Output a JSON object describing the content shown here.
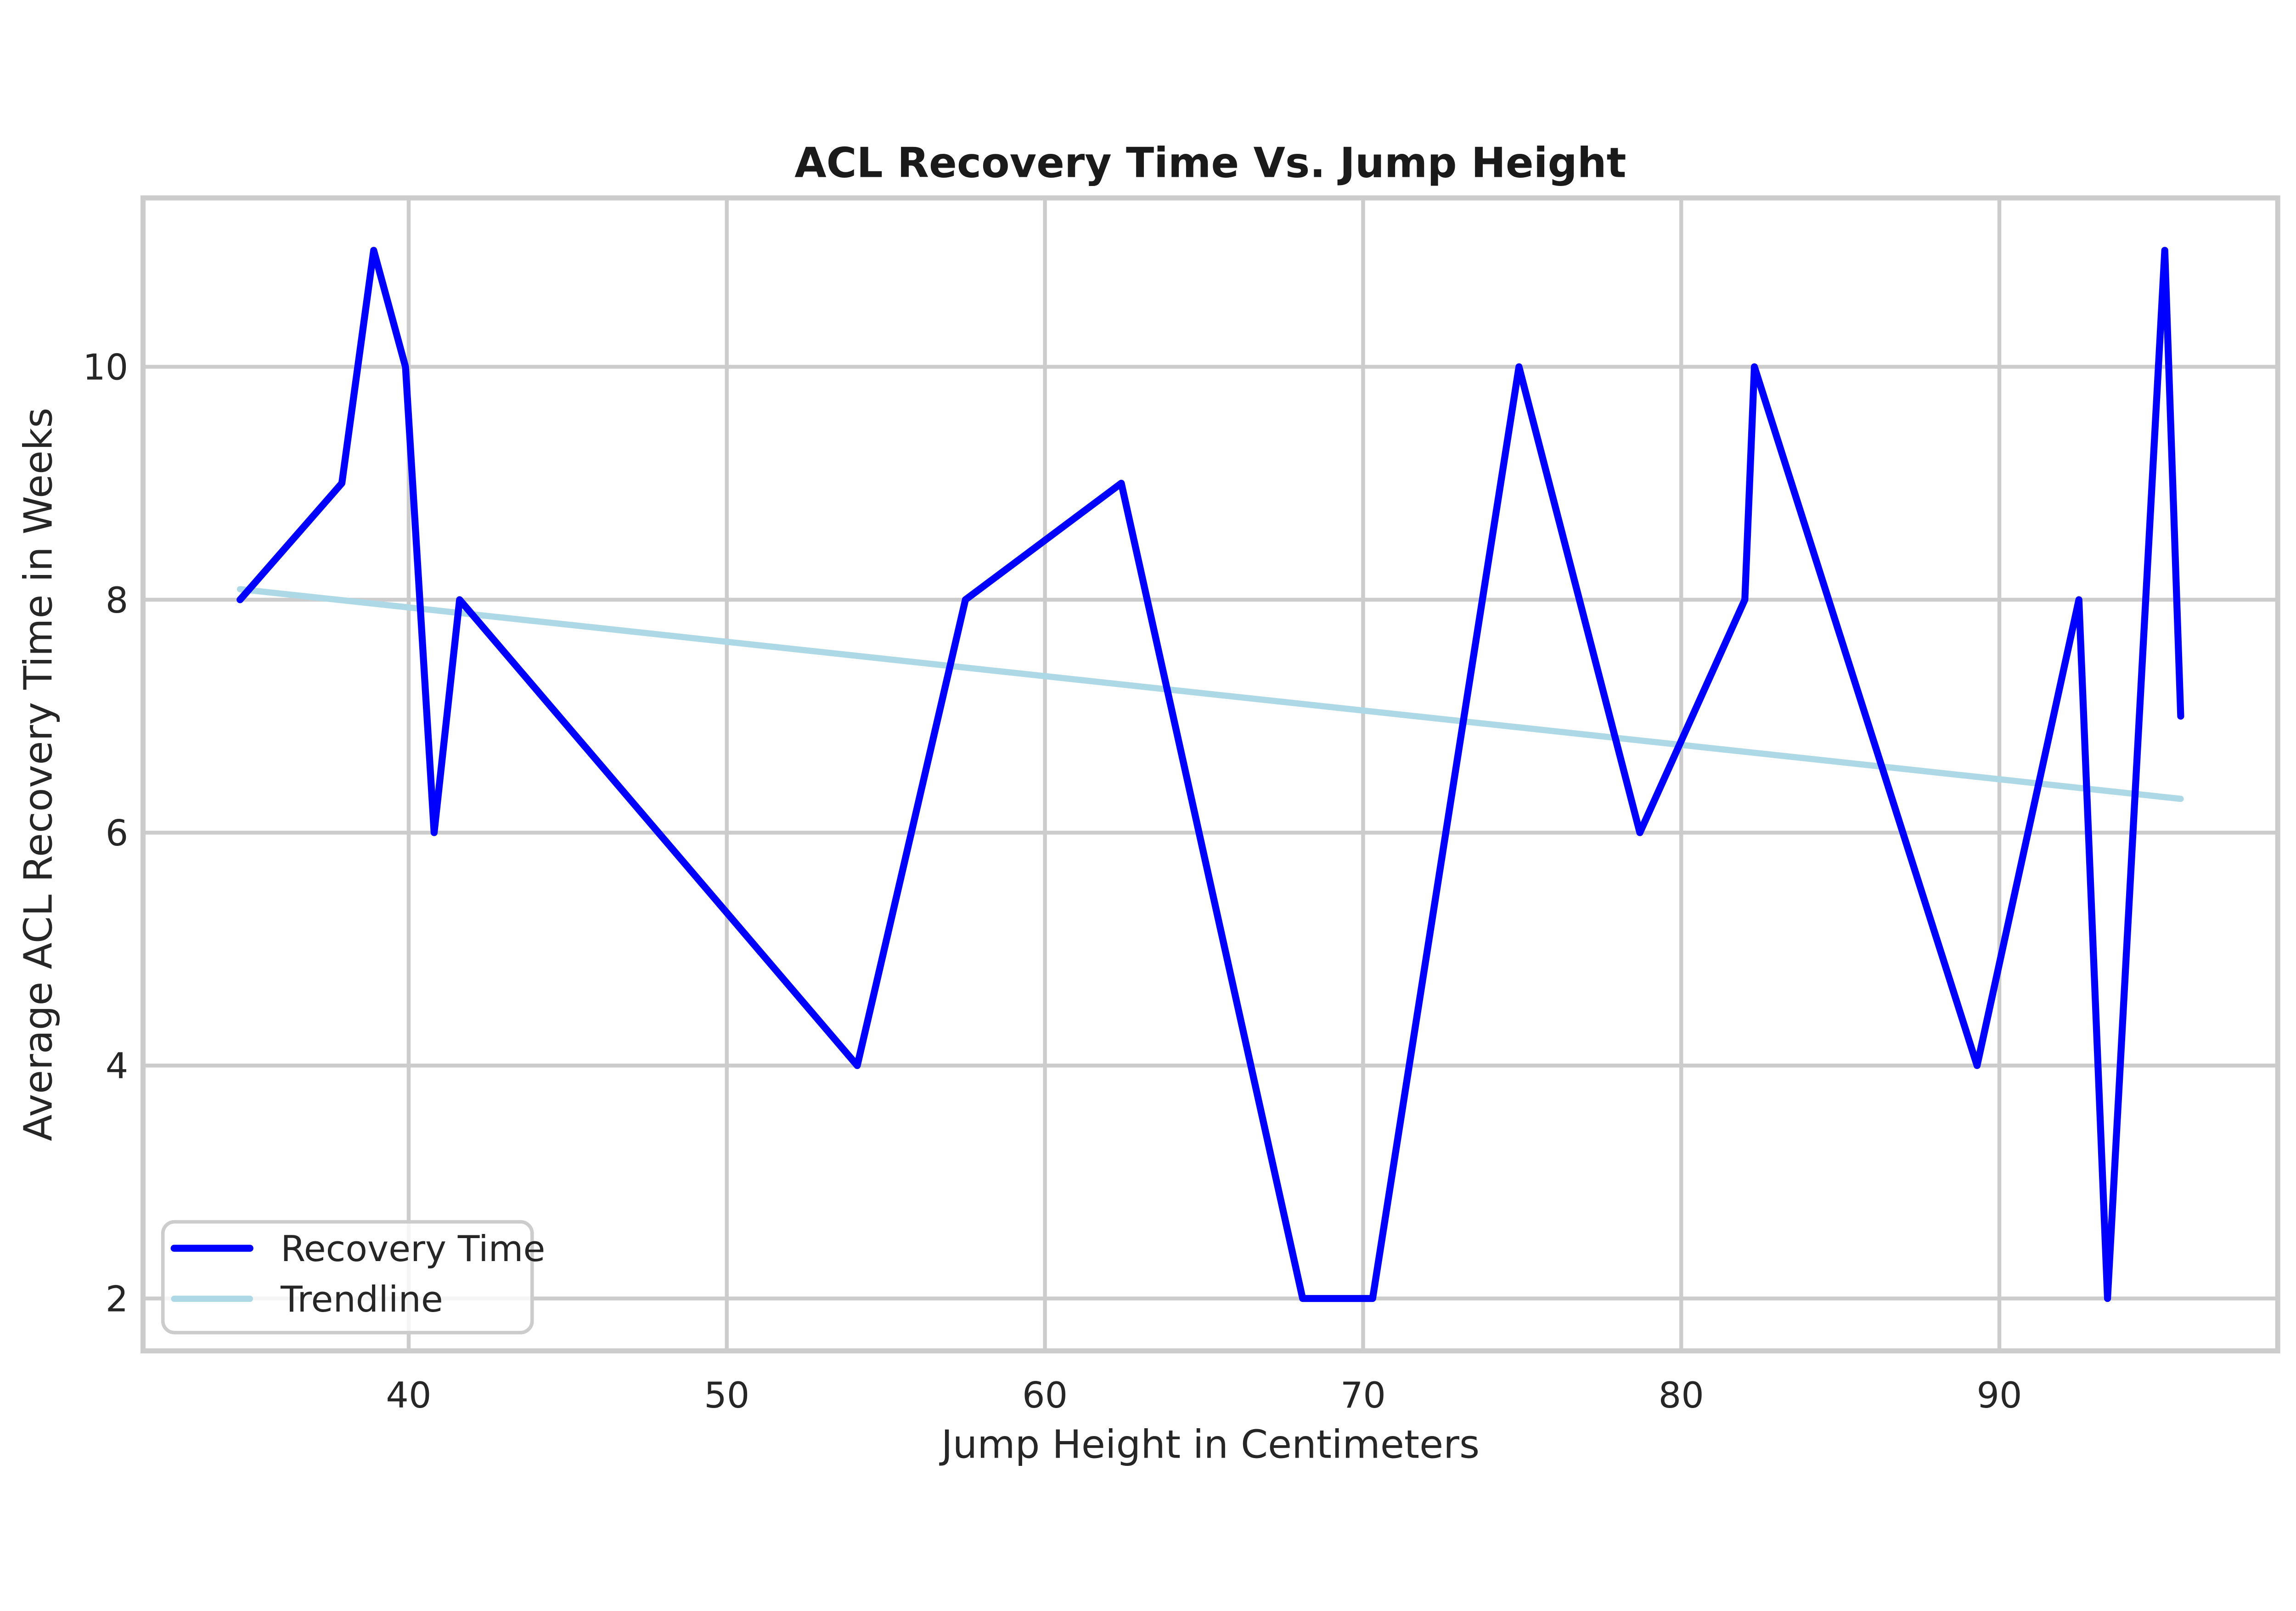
{
  "chart_data": {
    "type": "line",
    "title": "ACL Recovery Time Vs. Jump Height",
    "xlabel": "Jump Height in Centimeters",
    "ylabel": "Average ACL Recovery Time in Weeks",
    "x_ticks": [
      40,
      50,
      60,
      70,
      80,
      90
    ],
    "y_ticks": [
      2,
      4,
      6,
      8,
      10
    ],
    "xlim": [
      31.65,
      98.75
    ],
    "ylim": [
      1.55,
      11.45
    ],
    "grid": true,
    "legend_position": "lower left",
    "series": [
      {
        "name": "Recovery Time",
        "color": "#0000FF",
        "line_width": 18,
        "x": [
          34.7,
          37.9,
          38.9,
          39.9,
          40.8,
          41.6,
          54.1,
          57.5,
          62.4,
          68.1,
          70.3,
          74.9,
          78.7,
          82.0,
          82.3,
          89.3,
          92.5,
          93.4,
          95.2,
          95.7
        ],
        "y": [
          8,
          9,
          11,
          10,
          6,
          8,
          4,
          8,
          9,
          2,
          2,
          10,
          6,
          8,
          10,
          4,
          8,
          2,
          11,
          7
        ]
      },
      {
        "name": "Trendline",
        "color": "#ADD8E6",
        "line_width": 16,
        "x": [
          34.7,
          95.7
        ],
        "y": [
          8.09,
          6.29
        ]
      }
    ]
  },
  "colors": {
    "background": "#ffffff",
    "grid": "#cccccc",
    "spine": "#cccccc",
    "text": "#262626",
    "series_blue": "#0000FF",
    "trendline_lightblue": "#ADD8E6"
  }
}
